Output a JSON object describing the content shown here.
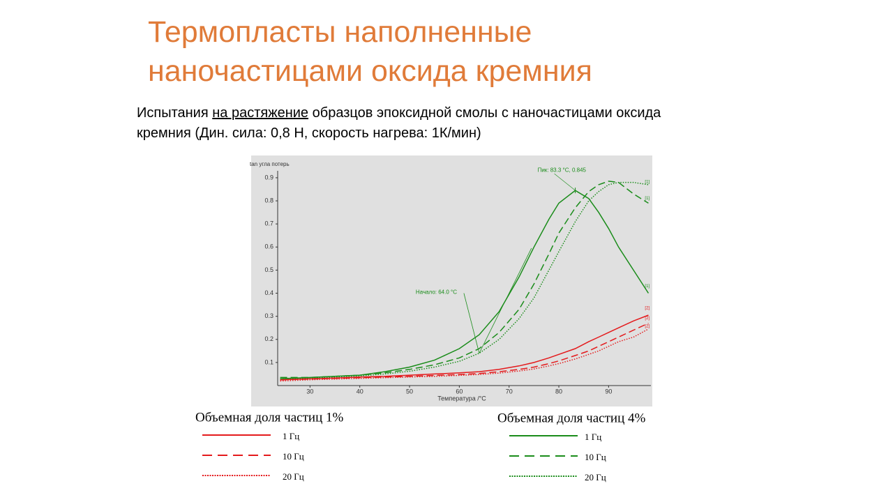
{
  "slide": {
    "title_lines": [
      "Термопласты наполненные",
      "наночастицами оксида кремния"
    ],
    "subtitle_parts": [
      "Испытания ",
      "на растяжение",
      " образцов эпоксидной смолы с наночастицами оксида кремния (Дин. сила: 0,8 Н, скорость нагрева: 1К/мин)"
    ]
  },
  "chart_data": {
    "type": "line",
    "x_label": "Температура /°C",
    "y_label": "tan угла потерь",
    "xlim": [
      23.5,
      98.5
    ],
    "ylim": [
      0,
      0.93
    ],
    "xticks": [
      30,
      40,
      50,
      60,
      70,
      80,
      90
    ],
    "yticks": [
      0.1,
      0.2,
      0.3,
      0.4,
      0.5,
      0.6,
      0.7,
      0.8,
      0.9
    ],
    "x": [
      24,
      30,
      35,
      40,
      45,
      50,
      55,
      60,
      64,
      68,
      72,
      75,
      78,
      80,
      83.3,
      86,
      88,
      90,
      92,
      95,
      98
    ],
    "legend_groups": [
      "Объемная доля частиц 1%",
      "Объемная доля частиц 4%"
    ],
    "series": [
      {
        "name": "1 Гц",
        "color": "#e41a1c",
        "dash": "solid",
        "end_label": "[2]",
        "values": [
          0.025,
          0.03,
          0.033,
          0.037,
          0.04,
          0.045,
          0.05,
          0.055,
          0.06,
          0.07,
          0.085,
          0.1,
          0.12,
          0.135,
          0.16,
          0.19,
          0.21,
          0.23,
          0.25,
          0.28,
          0.305
        ]
      },
      {
        "name": "10 Гц",
        "color": "#e41a1c",
        "dash": "dashed",
        "end_label": "[2]",
        "values": [
          0.025,
          0.028,
          0.031,
          0.034,
          0.037,
          0.04,
          0.044,
          0.048,
          0.052,
          0.06,
          0.07,
          0.08,
          0.095,
          0.107,
          0.13,
          0.15,
          0.17,
          0.19,
          0.21,
          0.24,
          0.27
        ]
      },
      {
        "name": "20 Гц",
        "color": "#e41a1c",
        "dash": "dotted",
        "end_label": "[2]",
        "values": [
          0.02,
          0.025,
          0.028,
          0.031,
          0.034,
          0.037,
          0.04,
          0.044,
          0.048,
          0.054,
          0.063,
          0.072,
          0.085,
          0.095,
          0.115,
          0.135,
          0.15,
          0.17,
          0.19,
          0.21,
          0.245
        ]
      },
      {
        "name": "1 Гц",
        "color": "#1a8c1a",
        "dash": "solid",
        "end_label": "[1]",
        "values": [
          0.03,
          0.035,
          0.04,
          0.045,
          0.06,
          0.08,
          0.11,
          0.16,
          0.22,
          0.32,
          0.47,
          0.6,
          0.72,
          0.79,
          0.845,
          0.81,
          0.75,
          0.68,
          0.6,
          0.5,
          0.4
        ]
      },
      {
        "name": "10 Гц",
        "color": "#1a8c1a",
        "dash": "dashed",
        "end_label": "[1]",
        "values": [
          0.035,
          0.035,
          0.04,
          0.045,
          0.055,
          0.07,
          0.09,
          0.12,
          0.16,
          0.23,
          0.33,
          0.44,
          0.57,
          0.66,
          0.77,
          0.84,
          0.87,
          0.885,
          0.88,
          0.83,
          0.79
        ]
      },
      {
        "name": "20 Гц",
        "color": "#1a8c1a",
        "dash": "dotted",
        "end_label": "[1]",
        "values": [
          0.03,
          0.033,
          0.037,
          0.042,
          0.05,
          0.062,
          0.08,
          0.105,
          0.14,
          0.2,
          0.29,
          0.38,
          0.5,
          0.58,
          0.71,
          0.8,
          0.84,
          0.87,
          0.88,
          0.88,
          0.87
        ]
      }
    ],
    "annotations": [
      {
        "text": "Пик: 83.3 °C, 0.845",
        "x": 83.3,
        "y": 0.845
      },
      {
        "text": "Начало: 64.0 °C",
        "x": 64,
        "y": 0.14
      }
    ]
  }
}
